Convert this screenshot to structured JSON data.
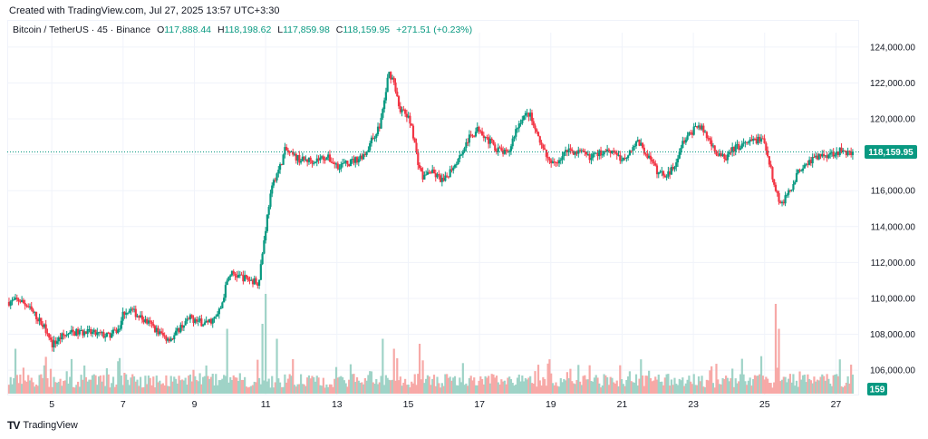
{
  "header": {
    "created": "Created with TradingView.com, Jul 27, 2025 13:57 UTC+3:30"
  },
  "legend": {
    "symbol": "Bitcoin / TetherUS · 45 · Binance",
    "open_label": "O",
    "open": "117,888.44",
    "high_label": "H",
    "high": "118,198.62",
    "low_label": "L",
    "low": "117,859.98",
    "close_label": "C",
    "close": "118,159.95",
    "change": "+271.51 (+0.23%)"
  },
  "price_tag": "118,159.95",
  "volume_tag": "159",
  "footer": {
    "brand": "TradingView",
    "logo": "TV"
  },
  "colors": {
    "up": "#089981",
    "down": "#f23645",
    "vol_up": "#9fd3c7",
    "vol_down": "#f7a9a7",
    "grid": "#f0f3fa",
    "last": "#089981"
  },
  "chart_data": {
    "type": "candlestick",
    "title": "Bitcoin / TetherUS · 45 · Binance",
    "interval": "45",
    "y_ticks": [
      "124,000.00",
      "122,000.00",
      "120,000.00",
      "118,000.00",
      "116,000.00",
      "114,000.00",
      "112,000.00",
      "110,000.00",
      "108,000.00",
      "106,000.00"
    ],
    "y_tick_values": [
      124000,
      122000,
      120000,
      118000,
      116000,
      114000,
      112000,
      110000,
      108000,
      106000
    ],
    "ylim": [
      105500,
      124600
    ],
    "x_ticks": [
      "5",
      "7",
      "9",
      "11",
      "13",
      "15",
      "17",
      "19",
      "21",
      "23",
      "25",
      "27"
    ],
    "xlim": [
      3.75,
      27.65
    ],
    "last_price": 118159.95,
    "close_path": [
      {
        "x": 3.8,
        "y": 109800
      },
      {
        "x": 4.1,
        "y": 109900
      },
      {
        "x": 4.3,
        "y": 109600
      },
      {
        "x": 4.6,
        "y": 108900
      },
      {
        "x": 4.9,
        "y": 108100
      },
      {
        "x": 5.0,
        "y": 107400
      },
      {
        "x": 5.3,
        "y": 107900
      },
      {
        "x": 5.6,
        "y": 108100
      },
      {
        "x": 6.0,
        "y": 108100
      },
      {
        "x": 6.3,
        "y": 108000
      },
      {
        "x": 6.6,
        "y": 107900
      },
      {
        "x": 6.9,
        "y": 108300
      },
      {
        "x": 7.0,
        "y": 109200
      },
      {
        "x": 7.2,
        "y": 109400
      },
      {
        "x": 7.5,
        "y": 108900
      },
      {
        "x": 7.8,
        "y": 108500
      },
      {
        "x": 8.0,
        "y": 108100
      },
      {
        "x": 8.2,
        "y": 107800
      },
      {
        "x": 8.4,
        "y": 107800
      },
      {
        "x": 8.6,
        "y": 108400
      },
      {
        "x": 8.9,
        "y": 108900
      },
      {
        "x": 9.1,
        "y": 108700
      },
      {
        "x": 9.3,
        "y": 108600
      },
      {
        "x": 9.6,
        "y": 108900
      },
      {
        "x": 9.75,
        "y": 109500
      },
      {
        "x": 9.9,
        "y": 110800
      },
      {
        "x": 10.0,
        "y": 111400
      },
      {
        "x": 10.3,
        "y": 111200
      },
      {
        "x": 10.6,
        "y": 111000
      },
      {
        "x": 10.8,
        "y": 110900
      },
      {
        "x": 10.9,
        "y": 112400
      },
      {
        "x": 11.0,
        "y": 113900
      },
      {
        "x": 11.1,
        "y": 115400
      },
      {
        "x": 11.25,
        "y": 116700
      },
      {
        "x": 11.4,
        "y": 117300
      },
      {
        "x": 11.55,
        "y": 118300
      },
      {
        "x": 11.7,
        "y": 118000
      },
      {
        "x": 12.0,
        "y": 117700
      },
      {
        "x": 12.4,
        "y": 117700
      },
      {
        "x": 12.7,
        "y": 117900
      },
      {
        "x": 13.0,
        "y": 117400
      },
      {
        "x": 13.3,
        "y": 117500
      },
      {
        "x": 13.6,
        "y": 117800
      },
      {
        "x": 13.8,
        "y": 118100
      },
      {
        "x": 14.0,
        "y": 118900
      },
      {
        "x": 14.2,
        "y": 119600
      },
      {
        "x": 14.35,
        "y": 121200
      },
      {
        "x": 14.45,
        "y": 122600
      },
      {
        "x": 14.6,
        "y": 122100
      },
      {
        "x": 14.75,
        "y": 120600
      },
      {
        "x": 14.95,
        "y": 120200
      },
      {
        "x": 15.1,
        "y": 119600
      },
      {
        "x": 15.25,
        "y": 117800
      },
      {
        "x": 15.4,
        "y": 116700
      },
      {
        "x": 15.6,
        "y": 117100
      },
      {
        "x": 15.8,
        "y": 116800
      },
      {
        "x": 16.0,
        "y": 116500
      },
      {
        "x": 16.2,
        "y": 117200
      },
      {
        "x": 16.4,
        "y": 117800
      },
      {
        "x": 16.7,
        "y": 118900
      },
      {
        "x": 17.0,
        "y": 119500
      },
      {
        "x": 17.2,
        "y": 118900
      },
      {
        "x": 17.5,
        "y": 118300
      },
      {
        "x": 17.8,
        "y": 118000
      },
      {
        "x": 18.0,
        "y": 119300
      },
      {
        "x": 18.2,
        "y": 120100
      },
      {
        "x": 18.4,
        "y": 120300
      },
      {
        "x": 18.6,
        "y": 119100
      },
      {
        "x": 18.8,
        "y": 118200
      },
      {
        "x": 19.0,
        "y": 117400
      },
      {
        "x": 19.2,
        "y": 117700
      },
      {
        "x": 19.5,
        "y": 118300
      },
      {
        "x": 19.8,
        "y": 118100
      },
      {
        "x": 20.1,
        "y": 117900
      },
      {
        "x": 20.4,
        "y": 118100
      },
      {
        "x": 20.6,
        "y": 118300
      },
      {
        "x": 20.8,
        "y": 118200
      },
      {
        "x": 21.0,
        "y": 117600
      },
      {
        "x": 21.2,
        "y": 118200
      },
      {
        "x": 21.4,
        "y": 118800
      },
      {
        "x": 21.6,
        "y": 118300
      },
      {
        "x": 21.8,
        "y": 117700
      },
      {
        "x": 22.0,
        "y": 117000
      },
      {
        "x": 22.3,
        "y": 116900
      },
      {
        "x": 22.5,
        "y": 117600
      },
      {
        "x": 22.7,
        "y": 118800
      },
      {
        "x": 22.9,
        "y": 119100
      },
      {
        "x": 23.1,
        "y": 119700
      },
      {
        "x": 23.3,
        "y": 119300
      },
      {
        "x": 23.5,
        "y": 118600
      },
      {
        "x": 23.7,
        "y": 118000
      },
      {
        "x": 23.9,
        "y": 117800
      },
      {
        "x": 24.1,
        "y": 118300
      },
      {
        "x": 24.3,
        "y": 118500
      },
      {
        "x": 24.5,
        "y": 118600
      },
      {
        "x": 24.7,
        "y": 118800
      },
      {
        "x": 24.9,
        "y": 118900
      },
      {
        "x": 25.0,
        "y": 118700
      },
      {
        "x": 25.15,
        "y": 117500
      },
      {
        "x": 25.3,
        "y": 116000
      },
      {
        "x": 25.45,
        "y": 115300
      },
      {
        "x": 25.6,
        "y": 115600
      },
      {
        "x": 25.75,
        "y": 116200
      },
      {
        "x": 25.9,
        "y": 116900
      },
      {
        "x": 26.1,
        "y": 117500
      },
      {
        "x": 26.3,
        "y": 117700
      },
      {
        "x": 26.5,
        "y": 117900
      },
      {
        "x": 26.7,
        "y": 118000
      },
      {
        "x": 26.9,
        "y": 118100
      },
      {
        "x": 27.1,
        "y": 118200
      },
      {
        "x": 27.3,
        "y": 118150
      },
      {
        "x": 27.5,
        "y": 118160
      }
    ],
    "volume_spikes": [
      {
        "x": 4.0,
        "v": 0.45
      },
      {
        "x": 9.9,
        "v": 0.65
      },
      {
        "x": 10.9,
        "v": 0.7
      },
      {
        "x": 11.0,
        "v": 1.0
      },
      {
        "x": 11.3,
        "v": 0.55
      },
      {
        "x": 14.3,
        "v": 0.55
      },
      {
        "x": 14.6,
        "v": 0.45
      },
      {
        "x": 15.3,
        "v": 0.5
      },
      {
        "x": 25.3,
        "v": 0.9
      },
      {
        "x": 25.4,
        "v": 0.65
      }
    ]
  }
}
